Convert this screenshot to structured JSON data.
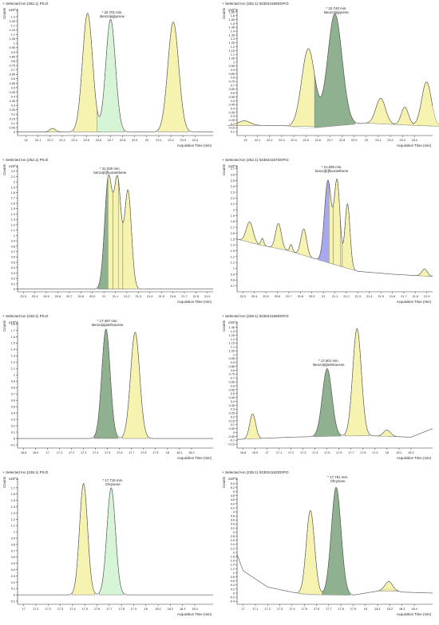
{
  "chart_data": [
    {
      "type": "area",
      "col": 0,
      "row": 0,
      "header": "+ Selected Ion (252.1) PS.D",
      "unit": "x10^2",
      "ylabel": "Counts",
      "xlabel": "Acquisition Time (min)",
      "xlim": [
        21.93,
        23.55
      ],
      "ylim": [
        -0.04,
        1.38
      ],
      "xticks": [
        22,
        22.1,
        22.2,
        22.3,
        22.4,
        22.5,
        22.6,
        22.7,
        22.8,
        22.9,
        23,
        23.1,
        23.2,
        23.3,
        23.4
      ],
      "yticks": [
        0,
        0.05,
        0.1,
        0.15,
        0.2,
        0.25,
        0.3,
        0.35,
        0.4,
        0.45,
        0.5,
        0.55,
        0.6,
        0.65,
        0.7,
        0.75,
        0.8,
        0.85,
        0.9,
        0.95,
        1,
        1.05,
        1.1,
        1.15,
        1.2,
        1.25,
        1.3
      ],
      "annotations": [
        {
          "x": 22.701,
          "y": 1.29,
          "lines": [
            "22.701 min.",
            "Benzo[a]pyrene"
          ]
        }
      ],
      "baseline": [
        [
          21.93,
          0.0
        ],
        [
          23.55,
          0.0
        ]
      ],
      "peaks": [
        {
          "c": 22.22,
          "h": 0.04,
          "w": 0.025,
          "fill": "yellow"
        },
        {
          "c": 22.51,
          "h": 1.34,
          "w": 0.042,
          "fill": "yellow"
        },
        {
          "c": 22.701,
          "h": 1.27,
          "w": 0.04,
          "fill": "lightgreen"
        },
        {
          "c": 23.22,
          "h": 1.24,
          "w": 0.045,
          "fill": "yellow"
        }
      ]
    },
    {
      "type": "area",
      "col": 1,
      "row": 0,
      "header": "+ Selected Ion (252.1) 023024159DOP.D",
      "unit": "x10^2",
      "ylabel": "Counts",
      "xlabel": "Acquisition Time (min)",
      "xlim": [
        21.93,
        23.55
      ],
      "ylim": [
        0.05,
        1.68
      ],
      "xticks": [
        22,
        22.1,
        22.2,
        22.3,
        22.4,
        22.5,
        22.6,
        22.7,
        22.8,
        22.9,
        23,
        23.1,
        23.2,
        23.3,
        23.4
      ],
      "yticks": [
        0.1,
        0.15,
        0.2,
        0.25,
        0.3,
        0.35,
        0.4,
        0.45,
        0.5,
        0.55,
        0.6,
        0.65,
        0.7,
        0.75,
        0.8,
        0.85,
        0.9,
        0.95,
        1,
        1.05,
        1.1,
        1.15,
        1.2,
        1.25,
        1.3,
        1.35,
        1.4,
        1.45,
        1.5,
        1.55,
        1.6,
        1.65
      ],
      "annotations": [
        {
          "x": 22.74,
          "y": 1.63,
          "lines": [
            "22.740 min.",
            "Benzo[a]pyrene"
          ]
        }
      ],
      "baseline": [
        [
          21.93,
          0.18
        ],
        [
          22.3,
          0.18
        ],
        [
          22.5,
          0.14
        ],
        [
          23.0,
          0.21
        ],
        [
          23.55,
          0.17
        ]
      ],
      "peaks": [
        {
          "c": 21.99,
          "h": 0.06,
          "w": 0.05,
          "fill": "yellow"
        },
        {
          "c": 22.52,
          "h": 1.03,
          "w": 0.055,
          "fill": "yellow"
        },
        {
          "c": 22.74,
          "h": 1.45,
          "w": 0.06,
          "fill": "darkgreen"
        },
        {
          "c": 23.12,
          "h": 0.33,
          "w": 0.04,
          "fill": "yellow"
        },
        {
          "c": 23.32,
          "h": 0.23,
          "w": 0.03,
          "fill": "yellow"
        },
        {
          "c": 23.5,
          "h": 0.57,
          "w": 0.04,
          "fill": "yellow"
        }
      ]
    },
    {
      "type": "area",
      "col": 0,
      "row": 1,
      "header": "+ Selected Ion (252.1) PS.D",
      "unit": "x10^2",
      "ylabel": "Counts",
      "xlabel": "Acquisition Time (min)",
      "xlim": [
        20.25,
        21.95
      ],
      "ylim": [
        -0.05,
        2.3
      ],
      "xticks": [
        20.3,
        20.4,
        20.5,
        20.6,
        20.7,
        20.8,
        20.9,
        21,
        21.1,
        21.2,
        21.3,
        21.4,
        21.5,
        21.6,
        21.7,
        21.8,
        21.9
      ],
      "yticks": [
        0,
        0.1,
        0.2,
        0.3,
        0.4,
        0.5,
        0.6,
        0.7,
        0.8,
        0.9,
        1,
        1.1,
        1.2,
        1.3,
        1.4,
        1.5,
        1.6,
        1.7,
        1.8,
        1.9,
        2,
        2.1,
        2.2
      ],
      "annotations": [
        {
          "x": 21.04,
          "y": 2.15,
          "lines": [
            "21.040 min.",
            "benzo[k]fluoranthene"
          ]
        }
      ],
      "baseline": [
        [
          20.25,
          0.0
        ],
        [
          21.95,
          0.0
        ]
      ],
      "peaks": [
        {
          "c": 21.04,
          "h": 2.07,
          "w": 0.033,
          "fill": "darkgreen"
        },
        {
          "c": 21.12,
          "h": 1.98,
          "w": 0.03,
          "fill": "yellow"
        },
        {
          "c": 21.21,
          "h": 1.83,
          "w": 0.03,
          "fill": "yellow"
        }
      ],
      "dividers": [
        21.08,
        21.165
      ]
    },
    {
      "type": "area",
      "col": 1,
      "row": 1,
      "header": "+ Selected Ion (252.1) 023024157DOP.D",
      "unit": "x10^2",
      "ylabel": "Counts",
      "xlabel": "Acquisition Time (min)",
      "xlim": [
        20.25,
        21.95
      ],
      "ylim": [
        0.6,
        2.75
      ],
      "xticks": [
        20.3,
        20.4,
        20.5,
        20.6,
        20.7,
        20.8,
        20.9,
        21,
        21.1,
        21.2,
        21.3,
        21.4,
        21.5,
        21.6,
        21.7,
        21.8,
        21.9
      ],
      "yticks": [
        0.7,
        0.8,
        0.9,
        1,
        1.1,
        1.2,
        1.3,
        1.4,
        1.5,
        1.6,
        1.7,
        1.8,
        1.9,
        2,
        2.1,
        2.2,
        2.3,
        2.4,
        2.5,
        2.6,
        2.7
      ],
      "annotations": [
        {
          "x": 21.059,
          "y": 2.64,
          "lines": [
            "21.059 min.",
            "benzo[b]fluoranthene"
          ]
        }
      ],
      "baseline": [
        [
          20.25,
          1.5
        ],
        [
          20.4,
          1.42
        ],
        [
          20.7,
          1.3
        ],
        [
          21.0,
          1.12
        ],
        [
          21.3,
          0.95
        ],
        [
          21.6,
          0.9
        ],
        [
          21.95,
          0.86
        ]
      ],
      "peaks": [
        {
          "c": 20.36,
          "h": 0.35,
          "w": 0.03,
          "fill": "yellow"
        },
        {
          "c": 20.47,
          "h": 0.12,
          "w": 0.012,
          "fill": "yellow"
        },
        {
          "c": 20.61,
          "h": 0.43,
          "w": 0.025,
          "fill": "yellow"
        },
        {
          "c": 20.72,
          "h": 0.12,
          "w": 0.012,
          "fill": "yellow"
        },
        {
          "c": 20.83,
          "h": 0.45,
          "w": 0.025,
          "fill": "yellow"
        },
        {
          "c": 21.04,
          "h": 1.4,
          "w": 0.03,
          "fill": "blue"
        },
        {
          "c": 21.12,
          "h": 1.43,
          "w": 0.025,
          "fill": "yellow"
        },
        {
          "c": 21.21,
          "h": 1.1,
          "w": 0.022,
          "fill": "yellow"
        },
        {
          "c": 21.88,
          "h": 0.12,
          "w": 0.025,
          "fill": "yellow"
        }
      ],
      "dividers": [
        21.085,
        21.165
      ]
    },
    {
      "type": "area",
      "col": 0,
      "row": 2,
      "header": "+ Selected Ion (228.1) PS.D",
      "unit": "x10^2",
      "ylabel": "Counts",
      "xlabel": "Acquisition Time (min)",
      "xlim": [
        16.75,
        18.38
      ],
      "ylim": [
        -0.15,
        1.83
      ],
      "xticks": [
        16.8,
        16.9,
        17,
        17.1,
        17.2,
        17.3,
        17.4,
        17.5,
        17.6,
        17.7,
        17.8,
        17.9,
        18,
        18.1,
        18.2
      ],
      "yticks": [
        -0.1,
        0,
        0.1,
        0.2,
        0.3,
        0.4,
        0.5,
        0.6,
        0.7,
        0.8,
        0.9,
        1,
        1.1,
        1.2,
        1.3,
        1.4,
        1.5,
        1.6,
        1.7,
        1.8
      ],
      "annotations": [
        {
          "x": 17.487,
          "y": 1.77,
          "lines": [
            "17.487 min.",
            "Benzo[a]anthracene"
          ]
        }
      ],
      "baseline": [
        [
          16.75,
          0.0
        ],
        [
          18.38,
          0.0
        ]
      ],
      "peaks": [
        {
          "c": 17.487,
          "h": 1.72,
          "w": 0.035,
          "fill": "darkgreen"
        },
        {
          "c": 17.73,
          "h": 1.67,
          "w": 0.038,
          "fill": "yellow"
        }
      ]
    },
    {
      "type": "area",
      "col": 1,
      "row": 2,
      "header": "+ Selected Ion (228.1) 023024159DOP.D",
      "unit": "x10^2",
      "ylabel": "Counts",
      "xlabel": "Acquisition Time (min)",
      "xlim": [
        16.75,
        18.38
      ],
      "ylim": [
        -0.2,
        1.42
      ],
      "xticks": [
        16.8,
        16.9,
        17,
        17.1,
        17.2,
        17.3,
        17.4,
        17.5,
        17.6,
        17.7,
        17.8,
        17.9,
        18,
        18.1,
        18.2
      ],
      "yticks": [
        -0.15,
        -0.1,
        -0.05,
        0,
        0.05,
        0.1,
        0.15,
        0.2,
        0.25,
        0.3,
        0.35,
        0.4,
        0.45,
        0.5,
        0.55,
        0.6,
        0.65,
        0.7,
        0.75,
        0.8,
        0.85,
        0.9,
        0.95,
        1,
        1.05,
        1.1,
        1.15,
        1.2,
        1.25,
        1.3,
        1.35
      ],
      "annotations": [
        {
          "x": 17.501,
          "y": 0.86,
          "lines": [
            "17.501 min.",
            "Benzo[a]anthracene"
          ]
        }
      ],
      "baseline": [
        [
          16.75,
          -0.09
        ],
        [
          17.2,
          -0.06
        ],
        [
          17.8,
          -0.04
        ],
        [
          18.2,
          -0.06
        ],
        [
          18.38,
          0.05
        ]
      ],
      "peaks": [
        {
          "c": 16.88,
          "h": 0.32,
          "w": 0.025,
          "fill": "yellow"
        },
        {
          "c": 17.501,
          "h": 0.87,
          "w": 0.04,
          "fill": "darkgreen"
        },
        {
          "c": 17.75,
          "h": 1.38,
          "w": 0.036,
          "fill": "yellow"
        },
        {
          "c": 18.0,
          "h": 0.08,
          "w": 0.03,
          "fill": "yellow"
        }
      ]
    },
    {
      "type": "area",
      "col": 0,
      "row": 3,
      "header": "+ Selected Ion (228.1) PS.D",
      "unit": "x10^2",
      "ylabel": "Counts",
      "xlabel": "Acquisition Time (min)",
      "xlim": [
        16.95,
        18.55
      ],
      "ylim": [
        -0.15,
        1.85
      ],
      "xticks": [
        17,
        17.1,
        17.2,
        17.3,
        17.4,
        17.5,
        17.6,
        17.7,
        17.8,
        17.9,
        18,
        18.1,
        18.2,
        18.3,
        18.4
      ],
      "yticks": [
        -0.1,
        0,
        0.1,
        0.2,
        0.3,
        0.4,
        0.5,
        0.6,
        0.7,
        0.8,
        0.9,
        1,
        1.1,
        1.2,
        1.3,
        1.4,
        1.5,
        1.6,
        1.7
      ],
      "annotations": [
        {
          "x": 17.716,
          "y": 1.74,
          "lines": [
            "17.716 min.",
            "Chrysene"
          ]
        }
      ],
      "baseline": [
        [
          16.95,
          0.0
        ],
        [
          18.55,
          0.0
        ]
      ],
      "peaks": [
        {
          "c": 17.49,
          "h": 1.77,
          "w": 0.033,
          "fill": "yellow"
        },
        {
          "c": 17.716,
          "h": 1.7,
          "w": 0.035,
          "fill": "lightgreen"
        }
      ]
    },
    {
      "type": "area",
      "col": 1,
      "row": 3,
      "header": "+ Selected Ion (228.1) 023024162DOP.D",
      "unit": "x10^2",
      "ylabel": "Counts",
      "xlabel": "Acquisition Time (min)",
      "xlim": [
        16.95,
        18.55
      ],
      "ylim": [
        -0.55,
        5.65
      ],
      "xticks": [
        17,
        17.1,
        17.2,
        17.3,
        17.4,
        17.5,
        17.6,
        17.7,
        17.8,
        17.9,
        18,
        18.1,
        18.2,
        18.3,
        18.4
      ],
      "yticks": [
        -0.4,
        -0.2,
        0,
        0.2,
        0.4,
        0.6,
        0.8,
        1,
        1.2,
        1.4,
        1.6,
        1.8,
        2,
        2.2,
        2.4,
        2.6,
        2.8,
        3,
        3.2,
        3.4,
        3.6,
        3.8,
        4,
        4.2,
        4.4,
        4.6,
        4.8,
        5,
        5.2,
        5.4
      ],
      "annotations": [
        {
          "x": 17.761,
          "y": 5.45,
          "lines": [
            "17.761 min.",
            "Chrysene"
          ]
        }
      ],
      "baseline": [
        [
          16.95,
          1.9
        ],
        [
          17.0,
          1.1
        ],
        [
          17.2,
          0.3
        ],
        [
          17.5,
          -0.08
        ],
        [
          17.9,
          -0.1
        ],
        [
          18.2,
          0.2
        ],
        [
          18.3,
          0.05
        ],
        [
          18.55,
          0.0
        ]
      ],
      "peaks": [
        {
          "c": 17.55,
          "h": 4.15,
          "w": 0.034,
          "fill": "yellow"
        },
        {
          "c": 17.761,
          "h": 5.3,
          "w": 0.04,
          "fill": "darkgreen"
        },
        {
          "c": 18.19,
          "h": 0.38,
          "w": 0.03,
          "fill": "yellow"
        }
      ]
    }
  ]
}
